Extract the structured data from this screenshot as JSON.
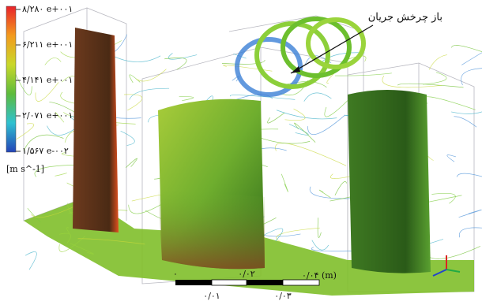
{
  "colorbar": {
    "labels": [
      "۸/۲۸۰ e+۰۰۱",
      "۶/۲۱۱ e+۰۰۱",
      "۴/۱۴۱ e+۰۰۱",
      "۲/۰۷۱ e+۰۰۱",
      "۱/۵۶۷ e-۰۰۲"
    ],
    "unit": "[m s^-1]"
  },
  "annotation": "باز چرخش جریان",
  "scale_bar": {
    "top_labels": [
      "۰",
      "۰/۰۲",
      "۰/۰۴ (m)"
    ],
    "bottom_labels": [
      "۰/۰۱",
      "۰/۰۳"
    ]
  }
}
